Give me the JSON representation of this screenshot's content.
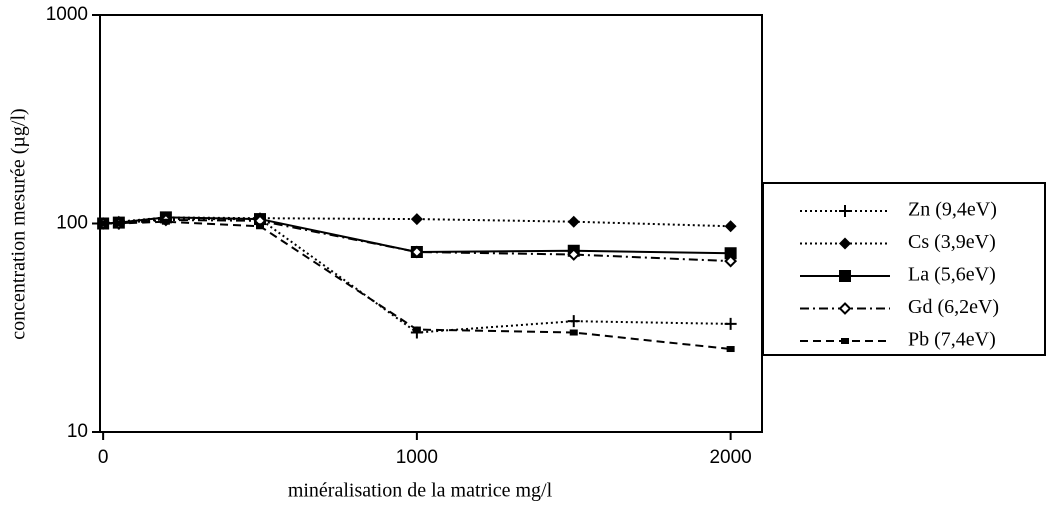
{
  "chart_data": {
    "type": "line",
    "xlabel": "minéralisation de la matrice mg/l",
    "ylabel": "concentration mesurée (µg/l)",
    "x": [
      0,
      50,
      200,
      500,
      1000,
      1500,
      2000
    ],
    "xlim": [
      -10,
      2100
    ],
    "xticks": [
      0,
      1000,
      2000
    ],
    "ylim": [
      10,
      1000
    ],
    "yticks": [
      10,
      100,
      1000
    ],
    "yscale": "log",
    "legend": "right",
    "series": [
      {
        "name": "Zn (9,4eV)",
        "color": "#000000",
        "dash": "dotted",
        "marker": "plus",
        "values": [
          100,
          100,
          105,
          105,
          30,
          34,
          33
        ]
      },
      {
        "name": "Cs (3,9eV)",
        "color": "#000000",
        "dash": "dotted",
        "marker": "diamond",
        "values": [
          100,
          102,
          107,
          106,
          105,
          102,
          97
        ]
      },
      {
        "name": "La (5,6eV)",
        "color": "#000000",
        "dash": "solid",
        "marker": "square",
        "values": [
          100,
          101,
          107,
          105,
          73,
          74,
          72
        ]
      },
      {
        "name": "Gd (6,2eV)",
        "color": "#000000",
        "dash": "dashdot",
        "marker": "open-diamond",
        "values": [
          100,
          100,
          104,
          103,
          73,
          71,
          66
        ]
      },
      {
        "name": "Pb (7,4eV)",
        "color": "#000000",
        "dash": "dashed",
        "marker": "small-square",
        "values": [
          100,
          100,
          102,
          97,
          31,
          30,
          25
        ]
      }
    ]
  }
}
